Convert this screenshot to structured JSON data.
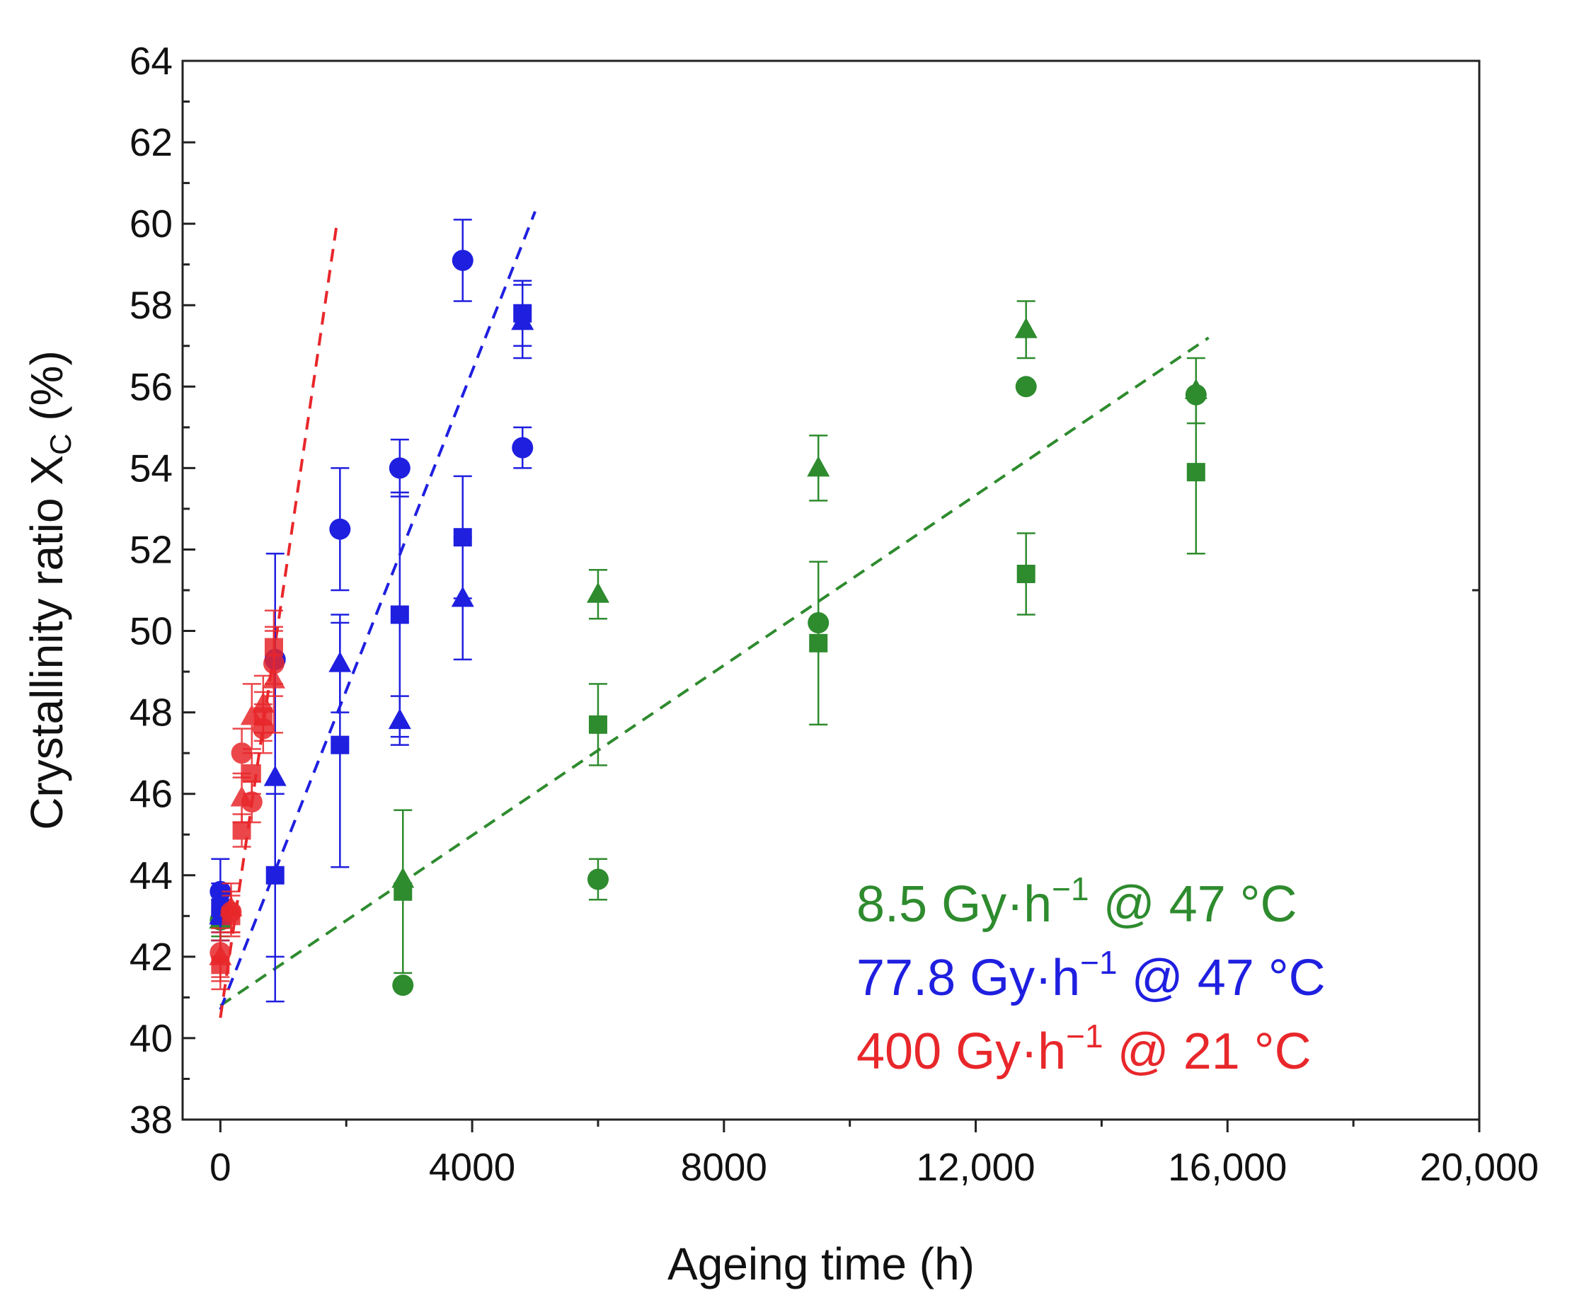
{
  "chart_data": {
    "type": "scatter",
    "xlabel": "Ageing time (h)",
    "ylabel_main": "Crystallinity ratio X",
    "ylabel_sub": "C",
    "ylabel_suffix": " (%)",
    "xlim": [
      -600,
      20000
    ],
    "ylim": [
      38,
      64
    ],
    "x_ticks": [
      {
        "value": 0,
        "label": "0"
      },
      {
        "value": 4000,
        "label": "4000"
      },
      {
        "value": 8000,
        "label": "8000"
      },
      {
        "value": 12000,
        "label": "12,000"
      },
      {
        "value": 16000,
        "label": "16,000"
      },
      {
        "value": 20000,
        "label": "20,000"
      }
    ],
    "y_ticks": [
      {
        "value": 38,
        "label": "38"
      },
      {
        "value": 40,
        "label": "40"
      },
      {
        "value": 42,
        "label": "42"
      },
      {
        "value": 44,
        "label": "44"
      },
      {
        "value": 46,
        "label": "46"
      },
      {
        "value": 48,
        "label": "48"
      },
      {
        "value": 50,
        "label": "50"
      },
      {
        "value": 52,
        "label": "52"
      },
      {
        "value": 54,
        "label": "54"
      },
      {
        "value": 56,
        "label": "56"
      },
      {
        "value": 58,
        "label": "58"
      },
      {
        "value": 60,
        "label": "60"
      },
      {
        "value": 62,
        "label": "62"
      },
      {
        "value": 64,
        "label": "64"
      }
    ],
    "legend": [
      {
        "parts": [
          "8.5 Gy·h",
          "−1",
          " @ 47 °C"
        ],
        "color": "#2e8b2e"
      },
      {
        "parts": [
          "77.8 Gy·h",
          "−1",
          " @ 47 °C"
        ],
        "color": "#1f1fe0"
      },
      {
        "parts": [
          "400 Gy·h",
          "−1",
          " @ 21 °C"
        ],
        "color": "#e8272b"
      }
    ],
    "series": [
      {
        "name": "8.5 Gy·h−1 @ 47 °C",
        "color": "#2e8b2e",
        "trend": {
          "x": [
            0,
            15700
          ],
          "y": [
            40.8,
            57.2
          ]
        },
        "points": [
          {
            "marker": "circle",
            "x": 0,
            "y": 42.9,
            "err": 0.5
          },
          {
            "marker": "square",
            "x": 0,
            "y": 43.0,
            "err": 0.5
          },
          {
            "marker": "triangle",
            "x": 0,
            "y": 42.9,
            "err": 0.5
          },
          {
            "marker": "circle",
            "x": 2900,
            "y": 41.3,
            "err": 0
          },
          {
            "marker": "square",
            "x": 2900,
            "y": 43.6,
            "err": 2.0
          },
          {
            "marker": "triangle",
            "x": 2900,
            "y": 43.9,
            "err": 0
          },
          {
            "marker": "circle",
            "x": 6000,
            "y": 43.9,
            "err": 0.5
          },
          {
            "marker": "square",
            "x": 6000,
            "y": 47.7,
            "err": 1.0
          },
          {
            "marker": "triangle",
            "x": 6000,
            "y": 50.9,
            "err": 0.6
          },
          {
            "marker": "circle",
            "x": 9500,
            "y": 50.2,
            "err": 0
          },
          {
            "marker": "square",
            "x": 9500,
            "y": 49.7,
            "err": 2.0
          },
          {
            "marker": "triangle",
            "x": 9500,
            "y": 54.0,
            "err": 0.8
          },
          {
            "marker": "circle",
            "x": 12800,
            "y": 56.0,
            "err": 0
          },
          {
            "marker": "square",
            "x": 12800,
            "y": 51.4,
            "err": 1.0
          },
          {
            "marker": "triangle",
            "x": 12800,
            "y": 57.4,
            "err": 0.7
          },
          {
            "marker": "circle",
            "x": 15500,
            "y": 55.8,
            "err": 0
          },
          {
            "marker": "square",
            "x": 15500,
            "y": 53.9,
            "err": 2.0
          },
          {
            "marker": "triangle",
            "x": 15500,
            "y": 55.9,
            "err": 0.8
          }
        ]
      },
      {
        "name": "77.8 Gy·h−1 @ 47 °C",
        "color": "#1f1fe0",
        "trend": {
          "x": [
            0,
            5000
          ],
          "y": [
            40.7,
            60.3
          ]
        },
        "points": [
          {
            "marker": "circle",
            "x": 0,
            "y": 43.6,
            "err": 0.8
          },
          {
            "marker": "square",
            "x": 0,
            "y": 43.2,
            "err": 0.6
          },
          {
            "marker": "triangle",
            "x": 0,
            "y": 43.0,
            "err": 0.6
          },
          {
            "marker": "circle",
            "x": 870,
            "y": 49.3,
            "err": 0
          },
          {
            "marker": "square",
            "x": 870,
            "y": 44.0,
            "err": 2.0
          },
          {
            "marker": "triangle",
            "x": 870,
            "y": 46.4,
            "err": 5.5
          },
          {
            "marker": "circle",
            "x": 1900,
            "y": 52.5,
            "err": 1.5
          },
          {
            "marker": "square",
            "x": 1900,
            "y": 47.2,
            "err": 3.0
          },
          {
            "marker": "triangle",
            "x": 1900,
            "y": 49.2,
            "err": 1.2
          },
          {
            "marker": "circle",
            "x": 2850,
            "y": 54.0,
            "err": 0.7
          },
          {
            "marker": "square",
            "x": 2850,
            "y": 50.4,
            "err": 3.0
          },
          {
            "marker": "triangle",
            "x": 2850,
            "y": 47.8,
            "err": 0.6
          },
          {
            "marker": "circle",
            "x": 3850,
            "y": 59.1,
            "err": 1.0
          },
          {
            "marker": "square",
            "x": 3850,
            "y": 52.3,
            "err": 1.5
          },
          {
            "marker": "triangle",
            "x": 3850,
            "y": 50.8,
            "err": 1.5
          },
          {
            "marker": "circle",
            "x": 4800,
            "y": 54.5,
            "err": 0.5
          },
          {
            "marker": "square",
            "x": 4800,
            "y": 57.8,
            "err": 0.8
          },
          {
            "marker": "triangle",
            "x": 4800,
            "y": 57.6,
            "err": 0.9
          }
        ]
      },
      {
        "name": "400 Gy·h−1 @ 21 °C",
        "color": "#e8272b",
        "trend": {
          "x": [
            0,
            1850
          ],
          "y": [
            40.5,
            60.0
          ]
        },
        "points": [
          {
            "marker": "circle",
            "x": 0,
            "y": 42.1,
            "err": 0.6
          },
          {
            "marker": "square",
            "x": 0,
            "y": 41.8,
            "err": 0.6
          },
          {
            "marker": "triangle",
            "x": 0,
            "y": 42.0,
            "err": 0.6
          },
          {
            "marker": "circle",
            "x": 170,
            "y": 43.1,
            "err": 0.5
          },
          {
            "marker": "square",
            "x": 170,
            "y": 43.0,
            "err": 0.5
          },
          {
            "marker": "triangle",
            "x": 170,
            "y": 43.2,
            "err": 0.6
          },
          {
            "marker": "circle",
            "x": 340,
            "y": 47.0,
            "err": 0.6
          },
          {
            "marker": "square",
            "x": 340,
            "y": 45.1,
            "err": 0.4
          },
          {
            "marker": "triangle",
            "x": 340,
            "y": 45.9,
            "err": 0.6
          },
          {
            "marker": "circle",
            "x": 500,
            "y": 45.8,
            "err": 0.5
          },
          {
            "marker": "square",
            "x": 500,
            "y": 46.5,
            "err": 0.5
          },
          {
            "marker": "triangle",
            "x": 500,
            "y": 47.9,
            "err": 0.8
          },
          {
            "marker": "circle",
            "x": 680,
            "y": 47.6,
            "err": 0.6
          },
          {
            "marker": "square",
            "x": 680,
            "y": 47.9,
            "err": 0.6
          },
          {
            "marker": "triangle",
            "x": 680,
            "y": 48.2,
            "err": 0.7
          },
          {
            "marker": "circle",
            "x": 850,
            "y": 49.2,
            "err": 0.8
          },
          {
            "marker": "square",
            "x": 850,
            "y": 49.6,
            "err": 0.9
          },
          {
            "marker": "triangle",
            "x": 850,
            "y": 48.8,
            "err": 1.3
          }
        ]
      }
    ]
  }
}
